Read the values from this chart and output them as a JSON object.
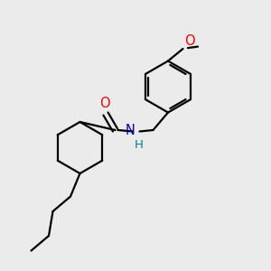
{
  "bg_color": "#ebebeb",
  "bond_color": "#000000",
  "oxygen_color": "#ff0000",
  "nitrogen_color": "#0000cc",
  "h_color": "#008080",
  "line_width": 1.6,
  "font_size": 10.5,
  "fig_width": 3.0,
  "fig_height": 3.0,
  "dpi": 100,
  "xlim": [
    0,
    1
  ],
  "ylim": [
    0,
    1
  ]
}
